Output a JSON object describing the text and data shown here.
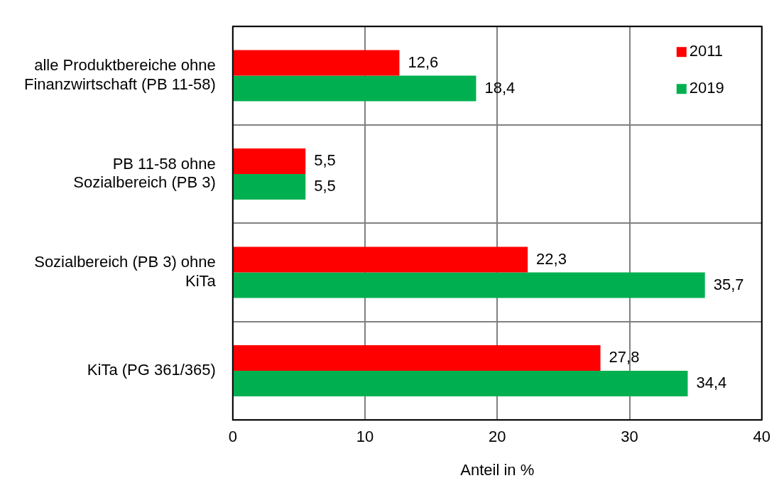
{
  "chart_data": {
    "type": "bar",
    "orientation": "horizontal",
    "xlabel": "Anteil in %",
    "categories": [
      "alle Produktbereiche ohne Finanzwirtschaft (PB 11-58)",
      "PB 11-58 ohne Sozialbereich (PB 3)",
      "Sozialbereich (PB 3) ohne KiTa",
      "KiTa (PG 361/365)"
    ],
    "series": [
      {
        "name": "2011",
        "color": "#ff0000",
        "values": [
          12.6,
          5.5,
          22.3,
          27.8
        ],
        "value_labels": [
          "12,6",
          "5,5",
          "22,3",
          "27,8"
        ]
      },
      {
        "name": "2019",
        "color": "#00b050",
        "values": [
          18.4,
          5.5,
          35.7,
          34.4
        ],
        "value_labels": [
          "18,4",
          "5,5",
          "35,7",
          "34,4"
        ]
      }
    ],
    "xlim": [
      0,
      40
    ],
    "xticks": [
      0,
      10,
      20,
      30,
      40
    ],
    "grid": true,
    "legend": "top right"
  }
}
